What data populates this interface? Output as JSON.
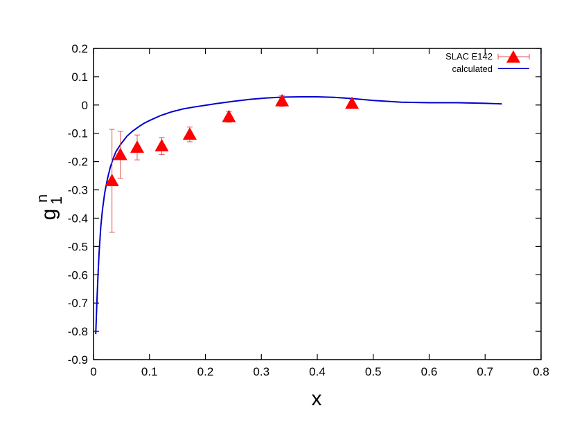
{
  "chart_data": {
    "type": "scatter",
    "title": "",
    "xlabel": "x",
    "ylabel": "g",
    "ylabel_subscript": "1",
    "ylabel_superscript": "n",
    "xlim": [
      0,
      0.8
    ],
    "ylim": [
      -0.9,
      0.2
    ],
    "xticks": [
      "0",
      "0.1",
      "0.2",
      "0.3",
      "0.4",
      "0.5",
      "0.6",
      "0.7",
      "0.8"
    ],
    "yticks": [
      "0.2",
      "0.1",
      "0",
      "-0.1",
      "-0.2",
      "-0.3",
      "-0.4",
      "-0.5",
      "-0.6",
      "-0.7",
      "-0.8",
      "-0.9"
    ],
    "grid": false,
    "legend_position": "top-right",
    "series": [
      {
        "name": "SLAC E142",
        "kind": "points-with-errorbars",
        "color": "#ff0000",
        "errorbar_color": "#e05050",
        "marker": "triangle",
        "x": [
          0.033,
          0.048,
          0.078,
          0.122,
          0.172,
          0.242,
          0.337,
          0.462
        ],
        "y": [
          -0.268,
          -0.176,
          -0.15,
          -0.145,
          -0.104,
          -0.042,
          0.014,
          0.005
        ],
        "y_err_low": [
          0.182,
          0.083,
          0.044,
          0.03,
          0.026,
          0.019,
          0.019,
          0.015
        ],
        "y_err_high": [
          0.182,
          0.083,
          0.044,
          0.03,
          0.026,
          0.019,
          0.019,
          0.015
        ]
      },
      {
        "name": "calculated",
        "kind": "line",
        "color": "#0000cc",
        "x": [
          0.004,
          0.006,
          0.008,
          0.01,
          0.013,
          0.016,
          0.02,
          0.025,
          0.03,
          0.035,
          0.04,
          0.05,
          0.06,
          0.07,
          0.08,
          0.09,
          0.1,
          0.12,
          0.14,
          0.16,
          0.18,
          0.2,
          0.22,
          0.25,
          0.28,
          0.31,
          0.34,
          0.37,
          0.4,
          0.43,
          0.46,
          0.5,
          0.55,
          0.6,
          0.65,
          0.7,
          0.73
        ],
        "y": [
          -0.81,
          -0.7,
          -0.6,
          -0.52,
          -0.43,
          -0.37,
          -0.31,
          -0.26,
          -0.22,
          -0.19,
          -0.165,
          -0.135,
          -0.11,
          -0.092,
          -0.078,
          -0.065,
          -0.055,
          -0.037,
          -0.024,
          -0.014,
          -0.007,
          -0.001,
          0.005,
          0.013,
          0.02,
          0.025,
          0.028,
          0.029,
          0.029,
          0.027,
          0.023,
          0.016,
          0.01,
          0.008,
          0.008,
          0.006,
          0.004
        ]
      }
    ]
  }
}
